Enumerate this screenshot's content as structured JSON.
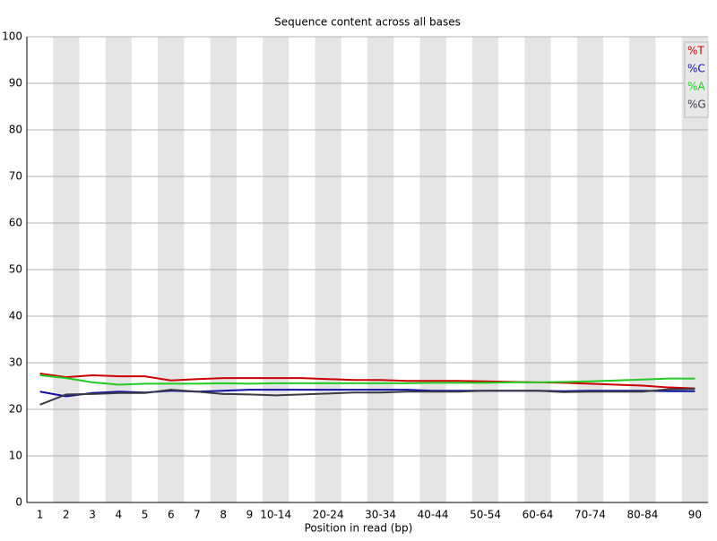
{
  "chart_data": {
    "type": "line",
    "title": "Sequence content across all bases",
    "x_label": "Position in read (bp)",
    "categories": [
      "1",
      "2",
      "3",
      "4",
      "5",
      "6",
      "7",
      "8",
      "9",
      "10-14",
      null,
      "20-24",
      null,
      "30-34",
      null,
      "40-44",
      null,
      "50-54",
      null,
      "60-64",
      null,
      "70-74",
      null,
      "80-84",
      null,
      "90"
    ],
    "series": [
      {
        "name": "%T",
        "color": "#cc0000",
        "values": [
          27.7,
          26.9,
          27.3,
          27.1,
          27.1,
          26.2,
          26.5,
          26.7,
          26.7,
          26.7,
          26.7,
          26.5,
          26.3,
          26.3,
          26.1,
          26.1,
          26.1,
          26.0,
          25.9,
          25.8,
          25.7,
          25.5,
          25.3,
          25.1,
          24.7,
          24.5
        ]
      },
      {
        "name": "%C",
        "color": "#1010a0",
        "values": [
          23.8,
          22.8,
          23.5,
          23.8,
          23.6,
          24.0,
          23.8,
          24.0,
          24.2,
          24.2,
          24.2,
          24.2,
          24.2,
          24.2,
          24.2,
          24.0,
          24.0,
          24.0,
          24.0,
          24.0,
          23.9,
          24.0,
          24.0,
          24.0,
          23.9,
          23.9
        ]
      },
      {
        "name": "%A",
        "color": "#22cc22",
        "values": [
          27.3,
          26.7,
          25.8,
          25.3,
          25.5,
          25.5,
          25.5,
          25.6,
          25.5,
          25.6,
          25.6,
          25.6,
          25.6,
          25.6,
          25.6,
          25.7,
          25.7,
          25.7,
          25.8,
          25.8,
          25.9,
          26.0,
          26.2,
          26.4,
          26.6,
          26.6
        ]
      },
      {
        "name": "%G",
        "color": "#3a3a44",
        "values": [
          21.0,
          23.2,
          23.3,
          23.5,
          23.5,
          24.2,
          23.8,
          23.3,
          23.2,
          23.0,
          23.2,
          23.4,
          23.6,
          23.6,
          23.8,
          23.8,
          23.8,
          24.0,
          24.0,
          24.0,
          23.7,
          23.8,
          23.8,
          23.8,
          24.3,
          24.4
        ]
      }
    ],
    "ylim": [
      0,
      100
    ],
    "yticks": [
      0,
      10,
      20,
      30,
      40,
      50,
      60,
      70,
      80,
      90,
      100
    ],
    "grid": true,
    "legend": "top-right"
  }
}
